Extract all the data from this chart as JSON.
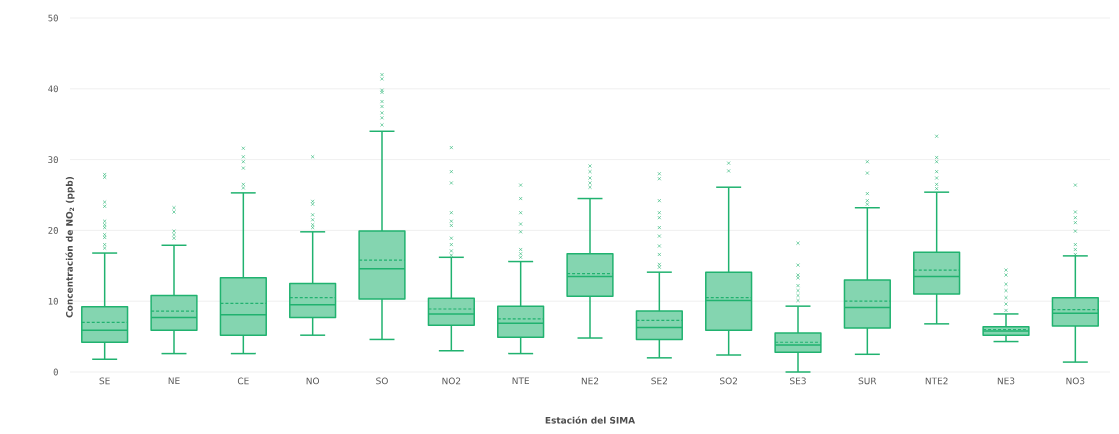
{
  "chart_data": {
    "type": "box",
    "xlabel": "Estación del SIMA",
    "ylabel": "Concentración de NO$_{2}$ (ppb)",
    "categories": [
      "SE",
      "NE",
      "CE",
      "NO",
      "SO",
      "NO2",
      "NTE",
      "NE2",
      "SE2",
      "SO2",
      "SE3",
      "SUR",
      "NTE2",
      "NE3",
      "NO3"
    ],
    "series": [
      {
        "color": "#20b26f",
        "boxes": [
          {
            "low": 1.8,
            "q1": 4.2,
            "median": 5.9,
            "q3": 9.2,
            "high": 16.8,
            "mean": 7.0,
            "outliers": [
              27.9,
              27.5,
              24.0,
              23.4,
              21.3,
              20.8,
              20.4,
              19.4,
              19.0,
              18.0,
              17.5
            ]
          },
          {
            "low": 2.6,
            "q1": 5.9,
            "median": 7.7,
            "q3": 10.8,
            "high": 17.9,
            "mean": 8.6,
            "outliers": [
              23.2,
              22.6,
              19.9,
              19.4,
              18.9
            ]
          },
          {
            "low": 2.6,
            "q1": 5.2,
            "median": 8.1,
            "q3": 13.3,
            "high": 25.3,
            "mean": 9.7,
            "outliers": [
              31.6,
              30.4,
              29.7,
              28.8,
              26.5,
              26.0
            ]
          },
          {
            "low": 5.2,
            "q1": 7.7,
            "median": 9.5,
            "q3": 12.5,
            "high": 19.8,
            "mean": 10.5,
            "outliers": [
              30.4,
              24.1,
              23.7,
              22.2,
              21.5,
              20.8,
              20.4
            ]
          },
          {
            "low": 4.6,
            "q1": 10.3,
            "median": 14.6,
            "q3": 19.9,
            "high": 34.0,
            "mean": 15.8,
            "outliers": [
              42.0,
              41.4,
              39.8,
              39.5,
              38.2,
              37.5,
              36.6,
              35.9,
              34.9
            ]
          },
          {
            "low": 3.0,
            "q1": 6.6,
            "median": 8.2,
            "q3": 10.4,
            "high": 16.2,
            "mean": 8.9,
            "outliers": [
              31.7,
              28.3,
              26.7,
              22.5,
              21.3,
              20.7,
              18.9,
              18.0,
              17.1,
              16.5
            ]
          },
          {
            "low": 2.6,
            "q1": 4.9,
            "median": 6.9,
            "q3": 9.3,
            "high": 15.6,
            "mean": 7.5,
            "outliers": [
              26.4,
              24.5,
              22.5,
              20.9,
              19.8,
              17.3,
              16.7,
              16.2
            ]
          },
          {
            "low": 4.8,
            "q1": 10.7,
            "median": 13.5,
            "q3": 16.7,
            "high": 24.5,
            "mean": 13.9,
            "outliers": [
              29.1,
              28.3,
              27.4,
              26.7,
              26.1
            ]
          },
          {
            "low": 2.0,
            "q1": 4.6,
            "median": 6.3,
            "q3": 8.6,
            "high": 14.1,
            "mean": 7.3,
            "outliers": [
              28.0,
              27.3,
              24.2,
              22.5,
              21.8,
              20.4,
              19.2,
              17.8,
              16.6,
              15.2,
              14.8
            ]
          },
          {
            "low": 2.4,
            "q1": 5.9,
            "median": 10.1,
            "q3": 14.1,
            "high": 26.1,
            "mean": 10.5,
            "outliers": [
              29.5,
              28.4
            ]
          },
          {
            "low": 0.0,
            "q1": 2.8,
            "median": 3.8,
            "q3": 5.5,
            "high": 9.3,
            "mean": 4.2,
            "outliers": [
              18.2,
              15.1,
              13.7,
              13.3,
              12.2,
              11.5,
              10.8,
              10.1
            ]
          },
          {
            "low": 2.5,
            "q1": 6.2,
            "median": 9.1,
            "q3": 13.0,
            "high": 23.2,
            "mean": 10.0,
            "outliers": [
              29.7,
              28.1,
              25.2,
              24.2,
              23.7
            ]
          },
          {
            "low": 6.8,
            "q1": 11.0,
            "median": 13.5,
            "q3": 16.9,
            "high": 25.4,
            "mean": 14.4,
            "outliers": [
              33.3,
              30.3,
              29.7,
              28.3,
              27.4,
              26.5,
              25.9
            ]
          },
          {
            "low": 4.3,
            "q1": 5.2,
            "median": 5.8,
            "q3": 6.4,
            "high": 8.2,
            "mean": 6.0,
            "outliers": [
              14.4,
              13.7,
              12.4,
              11.5,
              10.5,
              9.6,
              8.7
            ]
          },
          {
            "low": 1.4,
            "q1": 6.5,
            "median": 8.3,
            "q3": 10.5,
            "high": 16.4,
            "mean": 8.8,
            "outliers": [
              26.4,
              22.6,
              21.8,
              21.1,
              19.9,
              18.0,
              17.3,
              16.6
            ]
          }
        ]
      }
    ],
    "ylim": [
      0,
      50
    ],
    "yticks": [
      0,
      10,
      20,
      30,
      40,
      50
    ],
    "grid": "y",
    "marker": "cross"
  }
}
